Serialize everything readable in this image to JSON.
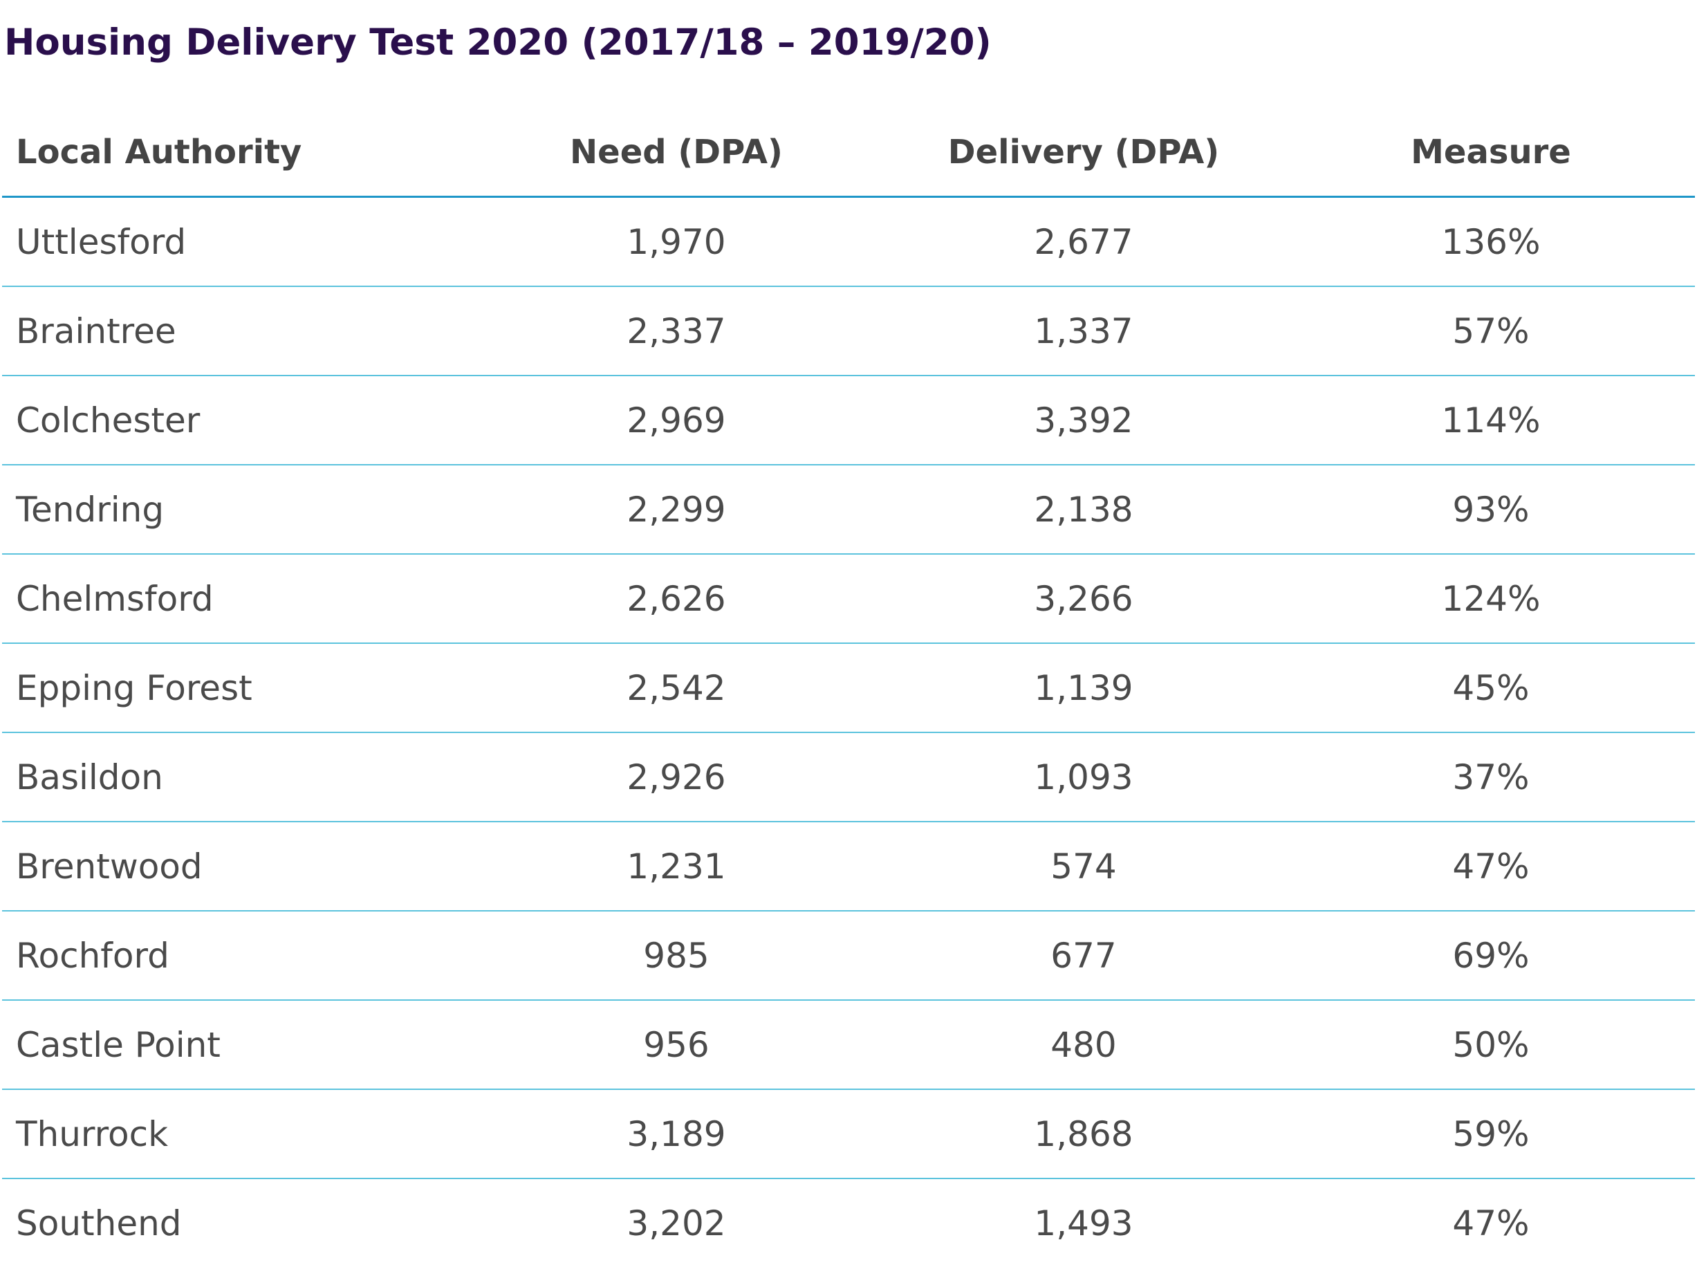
{
  "title": "Housing Delivery Test 2020 (2017/18 – 2019/20)",
  "table": {
    "headers": [
      "Local Authority",
      "Need (DPA)",
      "Delivery (DPA)",
      "Measure"
    ],
    "rows": [
      [
        "Uttlesford",
        "1,970",
        "2,677",
        "136%"
      ],
      [
        "Braintree",
        "2,337",
        "1,337",
        "57%"
      ],
      [
        "Colchester",
        "2,969",
        "3,392",
        "114%"
      ],
      [
        "Tendring",
        "2,299",
        "2,138",
        "93%"
      ],
      [
        "Chelmsford",
        "2,626",
        "3,266",
        "124%"
      ],
      [
        "Epping Forest",
        "2,542",
        "1,139",
        "45%"
      ],
      [
        "Basildon",
        "2,926",
        "1,093",
        "37%"
      ],
      [
        "Brentwood",
        "1,231",
        "574",
        "47%"
      ],
      [
        "Rochford",
        "985",
        "677",
        "69%"
      ],
      [
        "Castle Point",
        "956",
        "480",
        "50%"
      ],
      [
        "Thurrock",
        "3,189",
        "1,868",
        "59%"
      ],
      [
        "Southend",
        "3,202",
        "1,493",
        "47%"
      ]
    ]
  },
  "colors": {
    "title": "#2a0f4c",
    "text": "#4a4a4a",
    "header_rule": "#1e96c8",
    "row_rule": "#5cc3dd"
  }
}
